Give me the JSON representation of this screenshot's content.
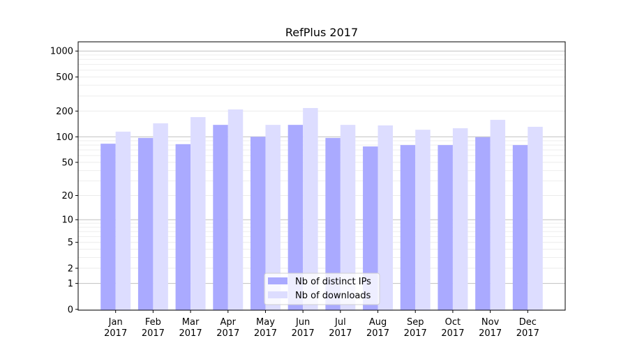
{
  "chart_data": {
    "type": "bar",
    "title": "RefPlus 2017",
    "xlabel": "",
    "ylabel": "",
    "yscale": "log(1+y)",
    "ylim": [
      0,
      1350
    ],
    "yticks": [
      0,
      1,
      2,
      5,
      10,
      20,
      50,
      100,
      200,
      500,
      1000
    ],
    "grid": true,
    "legend_position": "bottom-center",
    "categories": [
      "Jan\n2017",
      "Feb\n2017",
      "Mar\n2017",
      "Apr\n2017",
      "May\n2017",
      "Jun\n2017",
      "Jul\n2017",
      "Aug\n2017",
      "Sep\n2017",
      "Oct\n2017",
      "Nov\n2017",
      "Dec\n2017"
    ],
    "series": [
      {
        "name": "Nb of distinct IPs",
        "color": "#aaaaff",
        "values": [
          83,
          97,
          82,
          138,
          100,
          138,
          97,
          77,
          80,
          80,
          99,
          80
        ]
      },
      {
        "name": "Nb of downloads",
        "color": "#ddddff",
        "values": [
          115,
          144,
          170,
          209,
          138,
          217,
          138,
          136,
          121,
          126,
          158,
          131
        ]
      }
    ]
  }
}
